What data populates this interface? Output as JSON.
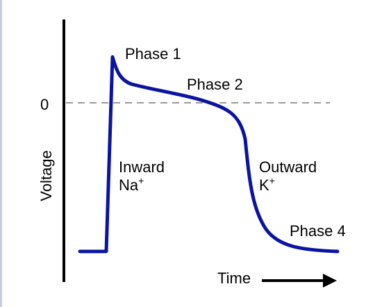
{
  "labels": {
    "zero": "0",
    "ylabel": "Voltage",
    "xlabel": "Time",
    "phase1": "Phase 1",
    "phase2": "Phase 2",
    "phase4": "Phase 4",
    "inward_line1": "Inward",
    "inward_ion": "Na",
    "inward_charge": "+",
    "outward_line1": "Outward",
    "outward_ion": "K",
    "outward_charge": "+"
  },
  "colors": {
    "curve": "#0a14a0",
    "axis": "#000000",
    "zero_line": "#9a9a9a",
    "frame_border": "#c7cbe6"
  },
  "icons": {
    "time_arrow": "right-arrow-icon"
  }
}
